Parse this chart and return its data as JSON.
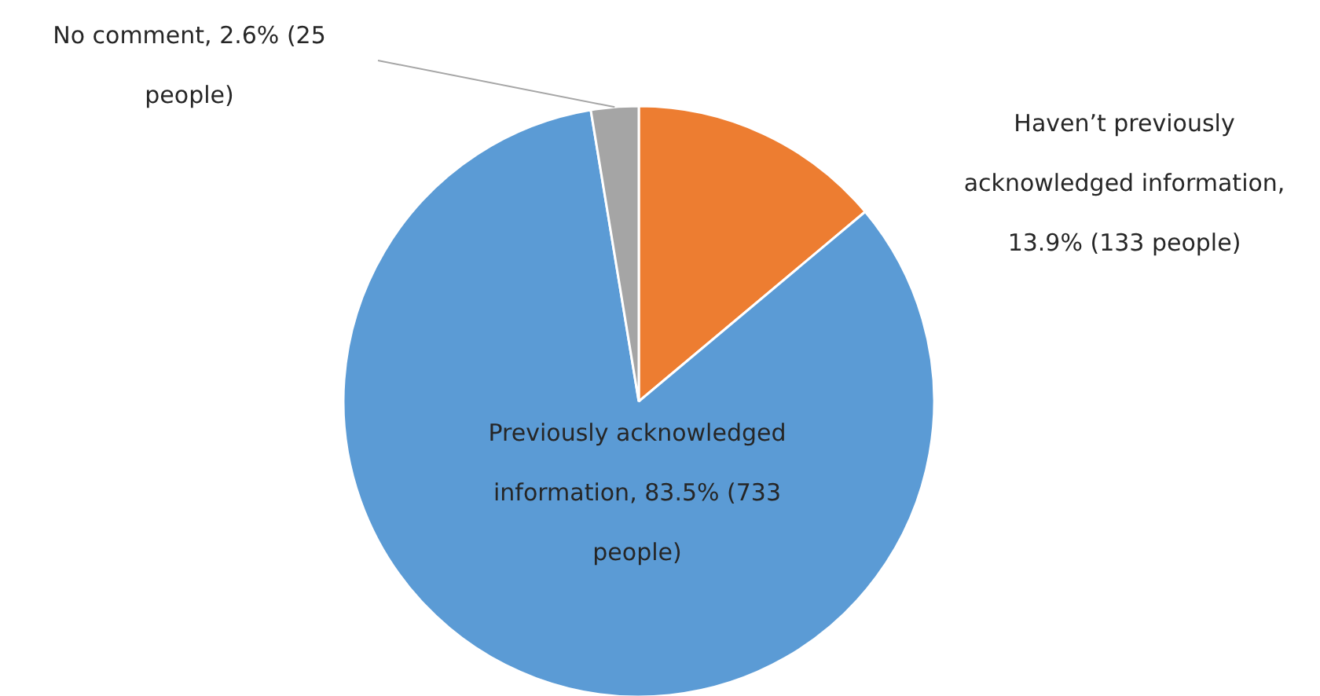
{
  "chart_data": {
    "type": "pie",
    "categories": [
      "Haven’t previously acknowledged information, 13.9% (133 people)",
      "Previously acknowledged information, 83.5% (733 people)",
      "No comment, 2.6% (25 people)"
    ],
    "values": [
      13.9,
      83.5,
      2.6
    ],
    "colors": [
      "#ed7d31",
      "#5b9bd5",
      "#a5a5a5"
    ]
  }
}
